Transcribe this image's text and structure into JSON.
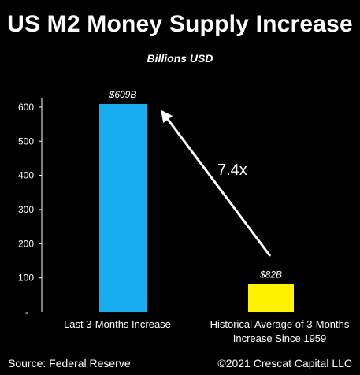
{
  "chart_data": {
    "type": "bar",
    "title": "US M2 Money Supply Increase",
    "subtitle": "Billions USD",
    "categories": [
      "Last 3-Months Increase",
      "Historical Average of 3-Months Increase Since 1959"
    ],
    "category_lines": [
      [
        "Last 3-Months Increase"
      ],
      [
        "Historical Average of 3-Months",
        "Increase Since 1959"
      ]
    ],
    "values": [
      609,
      82
    ],
    "data_labels": [
      "$609B",
      "$82B"
    ],
    "bar_colors": [
      "#18ADEF",
      "#FFF200"
    ],
    "yticks": [
      100,
      200,
      300,
      400,
      500,
      600
    ],
    "ytick_labels": [
      "100",
      "200",
      "300",
      "400",
      "500",
      "600"
    ],
    "bottom_tick_label": "-",
    "ylim": [
      0,
      650
    ],
    "annotation": {
      "text": "7.4x",
      "type": "arrow",
      "from": "bar-2",
      "to": "bar-1"
    },
    "grid": false,
    "legend": "none"
  },
  "footer": {
    "source": "Source: Federal Reserve",
    "copyright": "©2021 Crescat Capital LLC"
  },
  "colors": {
    "background": "#000000",
    "text": "#ffffff",
    "axis": "#ffffff"
  }
}
